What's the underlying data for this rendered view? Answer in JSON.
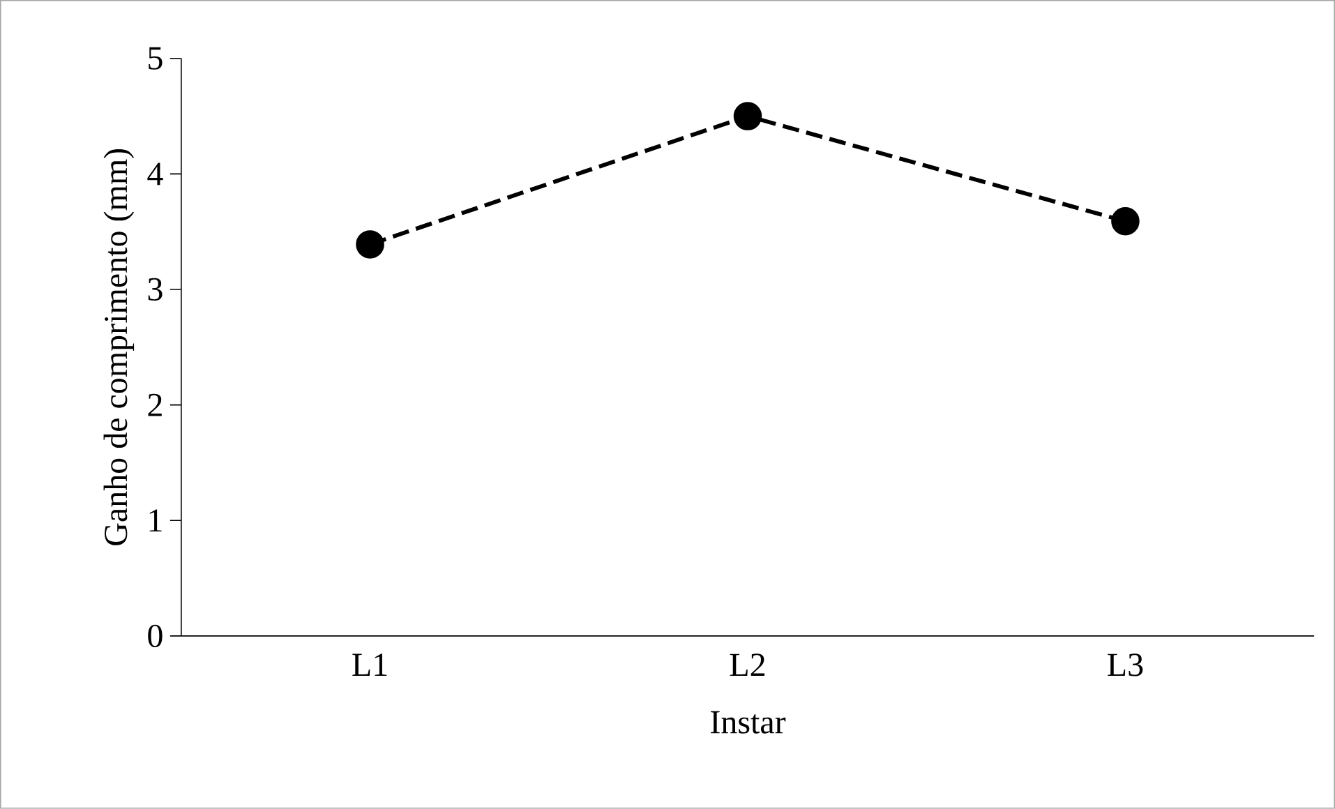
{
  "chart_data": {
    "type": "line",
    "xlabel": "Instar",
    "ylabel": "Ganho de comprimento (mm)",
    "categories": [
      "L1",
      "L2",
      "L3"
    ],
    "series": [
      {
        "color": "#000000",
        "values": [
          3.39,
          4.5,
          3.59
        ]
      }
    ],
    "ylim": [
      0,
      5
    ],
    "yticks": [
      0,
      1,
      2,
      3,
      4,
      5
    ],
    "marker": "circle",
    "line_style": "dashed"
  }
}
